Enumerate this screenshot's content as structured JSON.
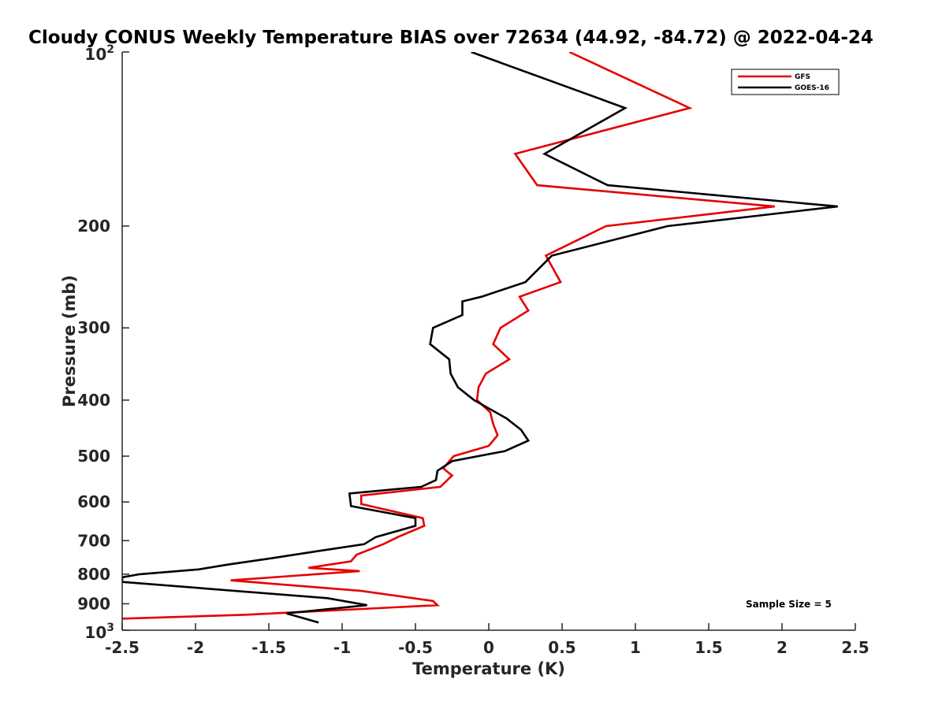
{
  "chart_data": {
    "type": "line",
    "title": "Cloudy CONUS Weekly Temperature BIAS over 72634 (44.92, -84.72) @ 2022-04-24",
    "xlabel": "Temperature (K)",
    "ylabel": "Pressure (mb)",
    "xlim": [
      -2.5,
      2.5
    ],
    "ylim": [
      100,
      1000
    ],
    "yscale": "log",
    "y_reversed": true,
    "grid": false,
    "legend_position": "top-right",
    "x_ticks": [
      "-2.5",
      "-2",
      "-1.5",
      "-1",
      "-0.5",
      "0",
      "0.5",
      "1",
      "1.5",
      "2",
      "2.5"
    ],
    "y_ticks": [
      {
        "value": 100,
        "base": "10",
        "exp": "2"
      },
      {
        "value": 200,
        "label": "200"
      },
      {
        "value": 300,
        "label": "300"
      },
      {
        "value": 400,
        "label": "400"
      },
      {
        "value": 500,
        "label": "500"
      },
      {
        "value": 600,
        "label": "600"
      },
      {
        "value": 700,
        "label": "700"
      },
      {
        "value": 800,
        "label": "800"
      },
      {
        "value": 900,
        "label": "900"
      },
      {
        "value": 1000,
        "base": "10",
        "exp": "3"
      }
    ],
    "annotation": "Sample Size = 5",
    "series": [
      {
        "name": "GFS",
        "color": "#e60000",
        "points": [
          [
            0.55,
            100
          ],
          [
            1.37,
            125
          ],
          [
            0.18,
            150
          ],
          [
            0.33,
            170
          ],
          [
            1.95,
            185
          ],
          [
            0.8,
            200
          ],
          [
            0.39,
            225
          ],
          [
            0.49,
            250
          ],
          [
            0.21,
            265
          ],
          [
            0.27,
            280
          ],
          [
            0.08,
            300
          ],
          [
            0.03,
            320
          ],
          [
            0.14,
            340
          ],
          [
            -0.02,
            360
          ],
          [
            -0.07,
            380
          ],
          [
            -0.08,
            400
          ],
          [
            0.01,
            420
          ],
          [
            0.03,
            440
          ],
          [
            0.06,
            460
          ],
          [
            0.0,
            480
          ],
          [
            -0.24,
            500
          ],
          [
            -0.31,
            525
          ],
          [
            -0.25,
            540
          ],
          [
            -0.33,
            565
          ],
          [
            -0.87,
            585
          ],
          [
            -0.87,
            605
          ],
          [
            -0.45,
            640
          ],
          [
            -0.44,
            660
          ],
          [
            -0.62,
            690
          ],
          [
            -0.72,
            710
          ],
          [
            -0.9,
            740
          ],
          [
            -0.94,
            760
          ],
          [
            -1.23,
            780
          ],
          [
            -0.88,
            790
          ],
          [
            -1.76,
            820
          ],
          [
            -0.87,
            855
          ],
          [
            -0.38,
            890
          ],
          [
            -0.35,
            905
          ],
          [
            -1.65,
            940
          ],
          [
            -2.5,
            955
          ]
        ]
      },
      {
        "name": "GOES-16",
        "color": "#000000",
        "points": [
          [
            -0.12,
            100
          ],
          [
            0.93,
            125
          ],
          [
            0.38,
            150
          ],
          [
            0.81,
            170
          ],
          [
            2.38,
            185
          ],
          [
            1.22,
            200
          ],
          [
            0.43,
            225
          ],
          [
            0.25,
            250
          ],
          [
            -0.05,
            265
          ],
          [
            -0.18,
            270
          ],
          [
            -0.18,
            285
          ],
          [
            -0.38,
            300
          ],
          [
            -0.4,
            320
          ],
          [
            -0.27,
            340
          ],
          [
            -0.26,
            360
          ],
          [
            -0.21,
            380
          ],
          [
            -0.1,
            400
          ],
          [
            0.12,
            430
          ],
          [
            0.22,
            450
          ],
          [
            0.27,
            470
          ],
          [
            0.11,
            490
          ],
          [
            -0.25,
            510
          ],
          [
            -0.35,
            530
          ],
          [
            -0.36,
            550
          ],
          [
            -0.46,
            565
          ],
          [
            -0.95,
            580
          ],
          [
            -0.94,
            610
          ],
          [
            -0.5,
            640
          ],
          [
            -0.5,
            660
          ],
          [
            -0.77,
            690
          ],
          [
            -0.85,
            710
          ],
          [
            -1.17,
            730
          ],
          [
            -1.47,
            750
          ],
          [
            -1.78,
            770
          ],
          [
            -1.98,
            785
          ],
          [
            -2.38,
            800
          ],
          [
            -2.5,
            810
          ],
          [
            -2.5,
            825
          ],
          [
            -1.1,
            880
          ],
          [
            -0.83,
            905
          ],
          [
            -1.38,
            935
          ],
          [
            -1.16,
            970
          ]
        ]
      }
    ]
  }
}
